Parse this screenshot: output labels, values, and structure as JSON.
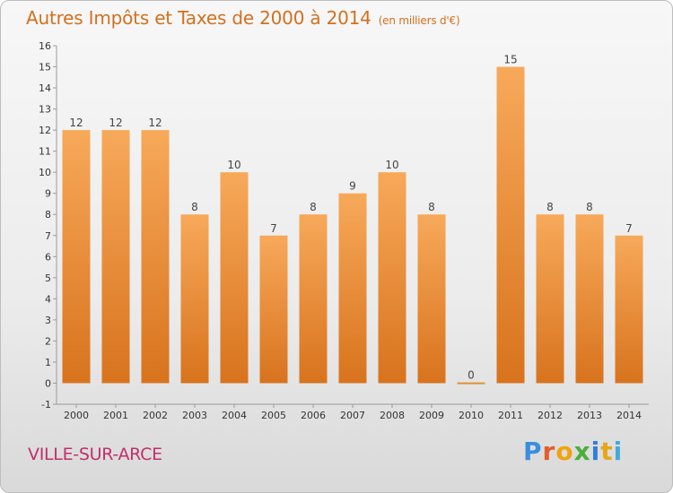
{
  "header": {
    "title": "Autres Impôts et Taxes de 2000 à 2014",
    "unit": "(en milliers d'€)"
  },
  "footer": {
    "place": "VILLE-SUR-ARCE",
    "logo": "Proxiti"
  },
  "colors": {
    "bar_top": "#f7a95a",
    "bar_bottom": "#d8731d",
    "title": "#d2701f",
    "place": "#c0306a"
  },
  "chart_data": {
    "type": "bar",
    "title": "Autres Impôts et Taxes de 2000 à 2014",
    "subtitle": "(en milliers d'€)",
    "xlabel": "",
    "ylabel": "",
    "categories": [
      "2000",
      "2001",
      "2002",
      "2003",
      "2004",
      "2005",
      "2006",
      "2007",
      "2008",
      "2009",
      "2010",
      "2011",
      "2012",
      "2013",
      "2014"
    ],
    "values": [
      12,
      12,
      12,
      8,
      10,
      7,
      8,
      9,
      10,
      8,
      0,
      15,
      8,
      8,
      7
    ],
    "ylim": [
      -1,
      16
    ],
    "yticks": [
      -1,
      0,
      1,
      2,
      3,
      4,
      5,
      6,
      7,
      8,
      9,
      10,
      11,
      12,
      13,
      14,
      15,
      16
    ],
    "grid": false,
    "legend": "none"
  }
}
